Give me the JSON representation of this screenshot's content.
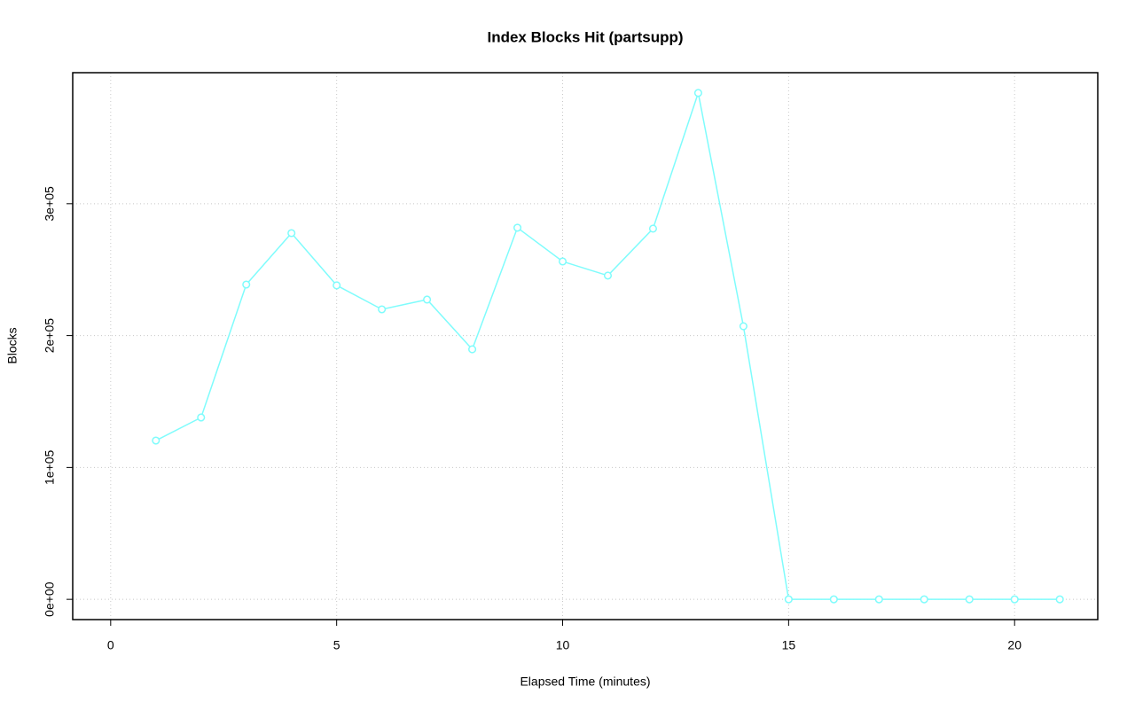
{
  "chart_data": {
    "type": "line",
    "title": "Index Blocks Hit (partsupp)",
    "x_label": "Elapsed Time (minutes)",
    "y_label": "Blocks",
    "x": [
      1,
      2,
      3,
      4,
      5,
      6,
      7,
      8,
      9,
      10,
      11,
      12,
      13,
      14,
      15,
      16,
      17,
      18,
      19,
      20,
      21
    ],
    "series": [
      {
        "name": "partsupp",
        "color": "#7ffcfc",
        "values": [
          120400,
          137900,
          238700,
          277700,
          238100,
          219900,
          227300,
          189600,
          281800,
          256200,
          245500,
          281100,
          384000,
          207100,
          0,
          0,
          0,
          0,
          0,
          0,
          0
        ]
      }
    ],
    "xlim": [
      -0.84,
      21.84
    ],
    "xticks": [
      0,
      5,
      10,
      15,
      20
    ],
    "ylim": [
      -15360,
      399360
    ],
    "yticks": [
      {
        "value": 0,
        "label": "0e+00"
      },
      {
        "value": 100000,
        "label": "1e+05"
      },
      {
        "value": 200000,
        "label": "2e+05"
      },
      {
        "value": 300000,
        "label": "3e+05"
      }
    ],
    "grid": true
  }
}
